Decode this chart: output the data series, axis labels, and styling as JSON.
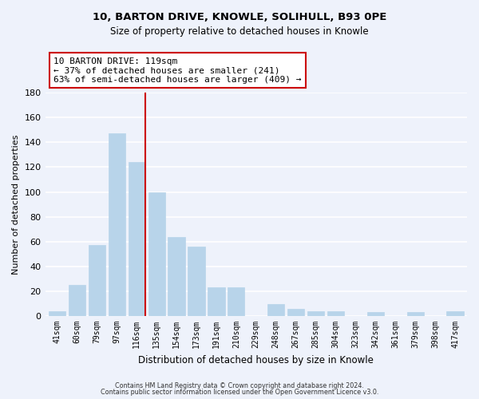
{
  "title": "10, BARTON DRIVE, KNOWLE, SOLIHULL, B93 0PE",
  "subtitle": "Size of property relative to detached houses in Knowle",
  "xlabel": "Distribution of detached houses by size in Knowle",
  "ylabel": "Number of detached properties",
  "bar_color": "#b8d4ea",
  "bar_edge_color": "#b8d4ea",
  "categories": [
    "41sqm",
    "60sqm",
    "79sqm",
    "97sqm",
    "116sqm",
    "135sqm",
    "154sqm",
    "173sqm",
    "191sqm",
    "210sqm",
    "229sqm",
    "248sqm",
    "267sqm",
    "285sqm",
    "304sqm",
    "323sqm",
    "342sqm",
    "361sqm",
    "379sqm",
    "398sqm",
    "417sqm"
  ],
  "values": [
    4,
    25,
    57,
    147,
    124,
    100,
    64,
    56,
    23,
    23,
    0,
    10,
    6,
    4,
    4,
    0,
    3,
    0,
    3,
    0,
    4
  ],
  "ylim": [
    0,
    180
  ],
  "yticks": [
    0,
    20,
    40,
    60,
    80,
    100,
    120,
    140,
    160,
    180
  ],
  "vline_color": "#cc0000",
  "annotation_title": "10 BARTON DRIVE: 119sqm",
  "annotation_line1": "← 37% of detached houses are smaller (241)",
  "annotation_line2": "63% of semi-detached houses are larger (409) →",
  "annotation_box_color": "#ffffff",
  "annotation_box_edge": "#cc0000",
  "footer1": "Contains HM Land Registry data © Crown copyright and database right 2024.",
  "footer2": "Contains public sector information licensed under the Open Government Licence v3.0.",
  "background_color": "#eef2fb",
  "grid_color": "#ffffff"
}
